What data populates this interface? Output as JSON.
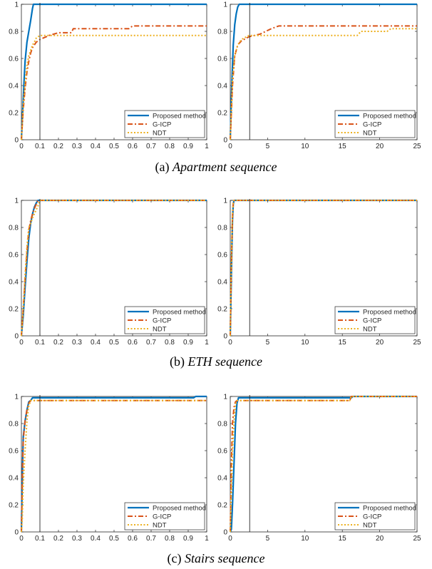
{
  "captions": [
    {
      "prefix": "(a) ",
      "name": "Apartment sequence"
    },
    {
      "prefix": "(b) ",
      "name": "ETH sequence"
    },
    {
      "prefix": "(c) ",
      "name": "Stairs sequence"
    }
  ],
  "legend_labels": [
    "Proposed method",
    "G-ICP",
    "NDT"
  ],
  "colors": {
    "proposed": "#0072BD",
    "gicp": "#D95319",
    "ndt": "#EDB120"
  },
  "chart_data": [
    {
      "type": "line",
      "sequence": "Apartment",
      "panel": "left",
      "xlim": [
        0,
        1
      ],
      "ylim": [
        0,
        1
      ],
      "xticks": [
        0,
        0.1,
        0.2,
        0.3,
        0.4,
        0.5,
        0.6,
        0.7,
        0.8,
        0.9,
        1
      ],
      "xtick_labels": [
        "0",
        "0.1",
        "0.2",
        "0.3",
        "0.4",
        "0.5",
        "0.6",
        "0.7",
        "0.8",
        "0.9",
        "1"
      ],
      "yticks": [
        0,
        0.2,
        0.4,
        0.6,
        0.8,
        1
      ],
      "ytick_labels": [
        "0",
        "0.2",
        "0.4",
        "0.6",
        "0.8",
        "1"
      ],
      "vline": 0.1,
      "legend": "bottom-right",
      "series": [
        {
          "name": "Proposed method",
          "x": [
            0,
            0.005,
            0.01,
            0.015,
            0.02,
            0.03,
            0.04,
            0.05,
            0.06,
            0.065,
            1
          ],
          "y": [
            0,
            0.15,
            0.3,
            0.45,
            0.58,
            0.72,
            0.8,
            0.88,
            0.97,
            1,
            1
          ]
        },
        {
          "name": "G-ICP",
          "x": [
            0,
            0.01,
            0.02,
            0.03,
            0.04,
            0.05,
            0.06,
            0.07,
            0.08,
            0.1,
            0.15,
            0.2,
            0.27,
            0.28,
            0.58,
            0.6,
            1
          ],
          "y": [
            0,
            0.22,
            0.38,
            0.5,
            0.58,
            0.64,
            0.68,
            0.7,
            0.72,
            0.74,
            0.77,
            0.79,
            0.79,
            0.82,
            0.82,
            0.84,
            0.84
          ]
        },
        {
          "name": "NDT",
          "x": [
            0,
            0.01,
            0.02,
            0.03,
            0.04,
            0.05,
            0.06,
            0.07,
            0.08,
            0.1,
            0.15,
            1
          ],
          "y": [
            0,
            0.25,
            0.42,
            0.55,
            0.62,
            0.66,
            0.7,
            0.72,
            0.75,
            0.77,
            0.77,
            0.77
          ]
        }
      ]
    },
    {
      "type": "line",
      "sequence": "Apartment",
      "panel": "right",
      "xlim": [
        0,
        25
      ],
      "ylim": [
        0,
        1
      ],
      "xticks": [
        0,
        5,
        10,
        15,
        20,
        25
      ],
      "xtick_labels": [
        "0",
        "5",
        "10",
        "15",
        "20",
        "25"
      ],
      "yticks": [
        0,
        0.2,
        0.4,
        0.6,
        0.8,
        1
      ],
      "ytick_labels": [
        "0",
        "0.2",
        "0.4",
        "0.6",
        "0.8",
        "1"
      ],
      "vline": 2.6,
      "legend": "bottom-right",
      "series": [
        {
          "name": "Proposed method",
          "x": [
            0,
            0.2,
            0.4,
            0.6,
            0.8,
            1.0,
            1.2,
            25
          ],
          "y": [
            0,
            0.4,
            0.7,
            0.85,
            0.93,
            0.98,
            1,
            1
          ]
        },
        {
          "name": "G-ICP",
          "x": [
            0,
            0.3,
            0.6,
            1.0,
            1.5,
            2.5,
            4.0,
            5.5,
            6.5,
            25
          ],
          "y": [
            0,
            0.4,
            0.62,
            0.7,
            0.73,
            0.76,
            0.78,
            0.82,
            0.84,
            0.84
          ]
        },
        {
          "name": "NDT",
          "x": [
            0,
            0.3,
            0.6,
            1.0,
            1.5,
            2.5,
            17.0,
            17.5,
            21.0,
            21.5,
            25
          ],
          "y": [
            0,
            0.45,
            0.62,
            0.7,
            0.74,
            0.77,
            0.77,
            0.8,
            0.8,
            0.82,
            0.82
          ]
        }
      ]
    },
    {
      "type": "line",
      "sequence": "ETH",
      "panel": "left",
      "xlim": [
        0,
        1
      ],
      "ylim": [
        0,
        1
      ],
      "xticks": [
        0,
        0.1,
        0.2,
        0.3,
        0.4,
        0.5,
        0.6,
        0.7,
        0.8,
        0.9,
        1
      ],
      "xtick_labels": [
        "0",
        "0.1",
        "0.2",
        "0.3",
        "0.4",
        "0.5",
        "0.6",
        "0.7",
        "0.8",
        "0.9",
        "1"
      ],
      "yticks": [
        0,
        0.2,
        0.4,
        0.6,
        0.8,
        1
      ],
      "ytick_labels": [
        "0",
        "0.2",
        "0.4",
        "0.6",
        "0.8",
        "1"
      ],
      "vline": 0.1,
      "legend": "bottom-right",
      "series": [
        {
          "name": "Proposed method",
          "x": [
            0,
            0.01,
            0.02,
            0.03,
            0.04,
            0.05,
            0.06,
            0.07,
            0.08,
            0.09,
            1
          ],
          "y": [
            0,
            0.15,
            0.36,
            0.55,
            0.72,
            0.83,
            0.9,
            0.95,
            0.98,
            1,
            1
          ]
        },
        {
          "name": "G-ICP",
          "x": [
            0,
            0.01,
            0.02,
            0.03,
            0.04,
            0.05,
            0.06,
            0.07,
            0.08,
            0.09,
            1
          ],
          "y": [
            0,
            0.2,
            0.42,
            0.62,
            0.78,
            0.85,
            0.9,
            0.94,
            0.97,
            1,
            1
          ]
        },
        {
          "name": "NDT",
          "x": [
            0,
            0.01,
            0.02,
            0.03,
            0.04,
            0.05,
            0.06,
            0.07,
            0.08,
            0.09,
            0.1,
            1
          ],
          "y": [
            0,
            0.2,
            0.45,
            0.66,
            0.8,
            0.83,
            0.87,
            0.9,
            0.93,
            0.96,
            1,
            1
          ]
        }
      ]
    },
    {
      "type": "line",
      "sequence": "ETH",
      "panel": "right",
      "xlim": [
        0,
        25
      ],
      "ylim": [
        0,
        1
      ],
      "xticks": [
        0,
        5,
        10,
        15,
        20,
        25
      ],
      "xtick_labels": [
        "0",
        "5",
        "10",
        "15",
        "20",
        "25"
      ],
      "yticks": [
        0,
        0.2,
        0.4,
        0.6,
        0.8,
        1
      ],
      "ytick_labels": [
        "0",
        "0.2",
        "0.4",
        "0.6",
        "0.8",
        "1"
      ],
      "vline": 2.6,
      "legend": "bottom-right",
      "series": [
        {
          "name": "Proposed method",
          "x": [
            0,
            0.1,
            0.2,
            0.3,
            0.4,
            0.5,
            25
          ],
          "y": [
            0,
            0.3,
            0.6,
            0.85,
            0.97,
            1,
            1
          ]
        },
        {
          "name": "G-ICP",
          "x": [
            0,
            0.1,
            0.2,
            0.3,
            0.4,
            0.5,
            25
          ],
          "y": [
            0,
            0.35,
            0.65,
            0.88,
            0.98,
            1,
            1
          ]
        },
        {
          "name": "NDT",
          "x": [
            0,
            0.1,
            0.2,
            0.3,
            0.4,
            0.5,
            25
          ],
          "y": [
            0,
            0.4,
            0.7,
            0.9,
            0.98,
            1,
            1
          ]
        }
      ]
    },
    {
      "type": "line",
      "sequence": "Stairs",
      "panel": "left",
      "xlim": [
        0,
        1
      ],
      "ylim": [
        0,
        1
      ],
      "xticks": [
        0,
        0.1,
        0.2,
        0.3,
        0.4,
        0.5,
        0.6,
        0.7,
        0.8,
        0.9,
        1
      ],
      "xtick_labels": [
        "0",
        "0.1",
        "0.2",
        "0.3",
        "0.4",
        "0.5",
        "0.6",
        "0.7",
        "0.8",
        "0.9",
        "1"
      ],
      "yticks": [
        0,
        0.2,
        0.4,
        0.6,
        0.8,
        1
      ],
      "ytick_labels": [
        "0",
        "0.2",
        "0.4",
        "0.6",
        "0.8",
        "1"
      ],
      "vline": 0.1,
      "legend": "bottom-right",
      "series": [
        {
          "name": "Proposed method",
          "x": [
            0,
            0.005,
            0.01,
            0.02,
            0.03,
            0.04,
            0.05,
            0.06,
            0.93,
            0.94,
            1
          ],
          "y": [
            0,
            0.4,
            0.7,
            0.82,
            0.9,
            0.96,
            0.97,
            0.99,
            0.99,
            1,
            1
          ]
        },
        {
          "name": "G-ICP",
          "x": [
            0,
            0.005,
            0.01,
            0.02,
            0.03,
            0.04,
            0.05,
            1
          ],
          "y": [
            0,
            0.4,
            0.68,
            0.82,
            0.9,
            0.95,
            0.97,
            0.97
          ]
        },
        {
          "name": "NDT",
          "x": [
            0,
            0.005,
            0.01,
            0.02,
            0.03,
            0.04,
            0.05,
            1
          ],
          "y": [
            0,
            0.1,
            0.35,
            0.6,
            0.82,
            0.93,
            0.97,
            0.97
          ]
        }
      ]
    },
    {
      "type": "line",
      "sequence": "Stairs",
      "panel": "right",
      "xlim": [
        0,
        25
      ],
      "ylim": [
        0,
        1
      ],
      "xticks": [
        0,
        5,
        10,
        15,
        20,
        25
      ],
      "xtick_labels": [
        "0",
        "5",
        "10",
        "15",
        "20",
        "25"
      ],
      "yticks": [
        0,
        0.2,
        0.4,
        0.6,
        0.8,
        1
      ],
      "ytick_labels": [
        "0",
        "0.2",
        "0.4",
        "0.6",
        "0.8",
        "1"
      ],
      "vline": 2.6,
      "legend": "bottom-right",
      "series": [
        {
          "name": "Proposed method",
          "x": [
            0,
            0.15,
            0.3,
            0.5,
            0.7,
            0.9,
            1.1,
            16.2,
            16.4,
            25
          ],
          "y": [
            0,
            0.02,
            0.2,
            0.5,
            0.8,
            0.95,
            0.99,
            0.99,
            1,
            1
          ]
        },
        {
          "name": "G-ICP",
          "x": [
            0,
            0.15,
            0.3,
            0.5,
            0.7,
            0.9,
            16.0,
            16.2,
            25
          ],
          "y": [
            0,
            0.5,
            0.8,
            0.92,
            0.96,
            0.97,
            0.97,
            1,
            1
          ]
        },
        {
          "name": "NDT",
          "x": [
            0,
            0.15,
            0.3,
            0.5,
            0.7,
            0.9,
            16.0,
            16.2,
            25
          ],
          "y": [
            0,
            0.3,
            0.6,
            0.82,
            0.94,
            0.97,
            0.97,
            1,
            1
          ]
        }
      ]
    }
  ]
}
